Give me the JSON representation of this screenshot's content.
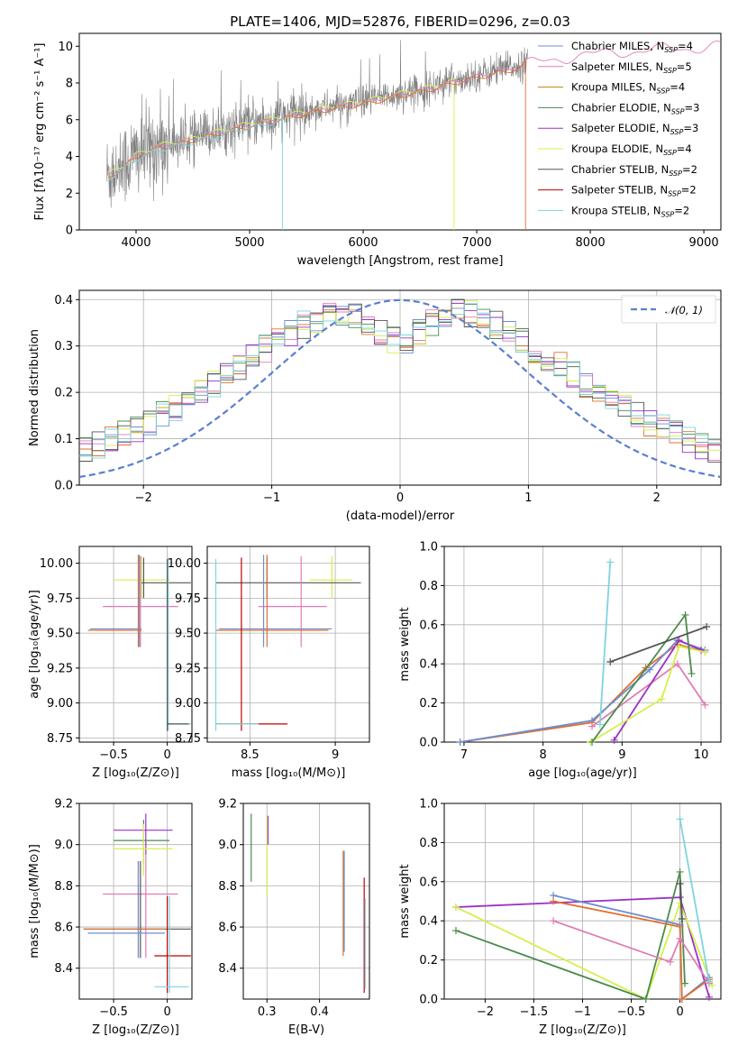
{
  "colors": {
    "miles_chabrier": "#6c8ecf",
    "miles_salpeter": "#e07cb5",
    "miles_kroupa": "#b8860b",
    "elodie_chabrier": "#4c8b4c",
    "elodie_salpeter": "#9b30c8",
    "elodie_kroupa": "#d4f04c",
    "stelib_chabrier": "#555555",
    "stelib_salpeter": "#c00000",
    "stelib_kroupa": "#7fd3e0",
    "orange": "#e07030",
    "grey": "#808080",
    "normal": "#5b7fcf"
  },
  "chart_data": [
    {
      "id": "spectrum",
      "type": "line",
      "title": "PLATE=1406, MJD=52876, FIBERID=0296, z=0.03",
      "xlabel": "wavelength [Angstrom, rest frame]",
      "ylabel": "Flux [fλ10⁻¹⁷ erg cm⁻² s⁻¹ A⁻¹]",
      "xlim": [
        3500,
        9150
      ],
      "ylim": [
        0,
        10.7
      ],
      "xticks": [
        4000,
        5000,
        6000,
        7000,
        8000,
        9000
      ],
      "yticks": [
        0,
        2,
        4,
        6,
        8,
        10
      ],
      "legend_position": "top-right",
      "legend": [
        {
          "label": "Chabrier MILES, N",
          "sub": "SSP",
          "tail": "=4",
          "color": "miles_chabrier"
        },
        {
          "label": "Salpeter MILES, N",
          "sub": "SSP",
          "tail": "=5",
          "color": "miles_salpeter"
        },
        {
          "label": "Kroupa MILES, N",
          "sub": "SSP",
          "tail": "=4",
          "color": "miles_kroupa"
        },
        {
          "label": "Chabrier ELODIE, N",
          "sub": "SSP",
          "tail": "=3",
          "color": "elodie_chabrier"
        },
        {
          "label": "Salpeter ELODIE, N",
          "sub": "SSP",
          "tail": "=3",
          "color": "elodie_salpeter"
        },
        {
          "label": "Kroupa ELODIE, N",
          "sub": "SSP",
          "tail": "=4",
          "color": "elodie_kroupa"
        },
        {
          "label": "Chabrier STELIB, N",
          "sub": "SSP",
          "tail": "=2",
          "color": "stelib_chabrier"
        },
        {
          "label": "Salpeter STELIB, N",
          "sub": "SSP",
          "tail": "=2",
          "color": "stelib_salpeter"
        },
        {
          "label": "Kroupa STELIB, N",
          "sub": "SSP",
          "tail": "=2",
          "color": "stelib_kroupa"
        }
      ],
      "model_envelope": [
        [
          3750,
          3.0
        ],
        [
          3900,
          3.6
        ],
        [
          4000,
          4.1
        ],
        [
          4200,
          4.6
        ],
        [
          4500,
          5.0
        ],
        [
          4800,
          5.5
        ],
        [
          5000,
          5.8
        ],
        [
          5300,
          6.2
        ],
        [
          5600,
          6.6
        ],
        [
          6000,
          7.0
        ],
        [
          6300,
          7.4
        ],
        [
          6600,
          7.8
        ],
        [
          6900,
          8.3
        ],
        [
          7200,
          8.7
        ],
        [
          7400,
          9.0
        ],
        [
          7600,
          9.3
        ],
        [
          7800,
          9.5
        ],
        [
          8000,
          9.6
        ],
        [
          8300,
          9.8
        ],
        [
          8600,
          9.9
        ],
        [
          8900,
          10.0
        ],
        [
          9100,
          10.1
        ]
      ],
      "model_drops": [
        {
          "x": 5290,
          "color": "stelib_kroupa"
        },
        {
          "x": 6800,
          "color": "elodie_kroupa"
        },
        {
          "x": 7430,
          "color": "orange"
        }
      ]
    },
    {
      "id": "residuals",
      "type": "line",
      "xlabel": "(data-model)/error",
      "ylabel": "Normed distribution",
      "xlim": [
        -2.5,
        2.5
      ],
      "ylim": [
        0,
        0.42
      ],
      "xticks": [
        -2,
        -1,
        0,
        1,
        2
      ],
      "yticks": [
        0.0,
        0.1,
        0.2,
        0.3,
        0.4
      ],
      "legend": [
        {
          "label": "𝒩(0, 1)",
          "color": "normal"
        }
      ],
      "histogram_bin_width": 0.1
    },
    {
      "id": "age_vs_z",
      "type": "scatter",
      "xlabel": "Z [log₁₀(Z/Z⊙)]",
      "ylabel": "age  [log₁₀(age/yr)]",
      "xlim": [
        -0.82,
        0.23
      ],
      "ylim": [
        8.72,
        10.12
      ],
      "xticks": [
        -0.5,
        0.0
      ],
      "yticks": [
        8.75,
        9.0,
        9.25,
        9.5,
        9.75,
        10.0
      ],
      "points": [
        {
          "x": -0.24,
          "y": 9.88,
          "xe": [
            -0.5,
            0.02
          ],
          "ye": [
            9.75,
            10.05
          ],
          "color": "elodie_kroupa"
        },
        {
          "x": -0.22,
          "y": 9.86,
          "xe": [
            -0.24,
            0.22
          ],
          "ye": [
            9.75,
            10.04
          ],
          "color": "stelib_chabrier"
        },
        {
          "x": -0.25,
          "y": 9.69,
          "xe": [
            -0.6,
            0.1
          ],
          "ye": [
            9.4,
            10.05
          ],
          "color": "miles_salpeter"
        },
        {
          "x": -0.26,
          "y": 9.53,
          "xe": [
            -0.72,
            -0.24
          ],
          "ye": [
            9.4,
            10.06
          ],
          "color": "miles_chabrier"
        },
        {
          "x": -0.27,
          "y": 9.52,
          "xe": [
            -0.74,
            -0.24
          ],
          "ye": [
            9.4,
            10.06
          ],
          "color": "orange"
        },
        {
          "x": 0.01,
          "y": 8.85,
          "xe": [
            0.0,
            0.22
          ],
          "ye": [
            8.8,
            10.04
          ],
          "color": "stelib_kroupa"
        },
        {
          "x": 0.0,
          "y": 8.85,
          "xe": [
            0.0,
            0.2
          ],
          "ye": [
            8.8,
            10.03
          ],
          "color": "stelib_chabrier"
        }
      ]
    },
    {
      "id": "age_vs_mass",
      "type": "scatter",
      "xlabel": "mass [log₁₀(M/M⊙)]",
      "ylabel": "",
      "xlim": [
        8.25,
        9.2
      ],
      "ylim": [
        8.72,
        10.12
      ],
      "xticks": [
        8.5,
        9.0
      ],
      "yticks": [
        8.75,
        9.0,
        9.25,
        9.5,
        9.75,
        10.0
      ],
      "points": [
        {
          "x": 8.98,
          "y": 9.88,
          "xe": [
            8.85,
            9.1
          ],
          "ye": [
            9.75,
            10.05
          ],
          "color": "elodie_kroupa"
        },
        {
          "x": 8.6,
          "y": 9.86,
          "xe": [
            8.3,
            9.15
          ],
          "ye": [
            9.75,
            10.04
          ],
          "color": "stelib_chabrier"
        },
        {
          "x": 8.8,
          "y": 9.69,
          "xe": [
            8.55,
            8.95
          ],
          "ye": [
            9.4,
            10.05
          ],
          "color": "miles_salpeter"
        },
        {
          "x": 8.58,
          "y": 9.53,
          "xe": [
            8.32,
            8.98
          ],
          "ye": [
            9.4,
            10.06
          ],
          "color": "miles_chabrier"
        },
        {
          "x": 8.6,
          "y": 9.52,
          "xe": [
            8.3,
            8.96
          ],
          "ye": [
            9.4,
            10.06
          ],
          "color": "orange"
        },
        {
          "x": 8.45,
          "y": 8.85,
          "xe": [
            8.3,
            8.72
          ],
          "ye": [
            8.8,
            10.04
          ],
          "color": "stelib_salpeter"
        },
        {
          "x": 8.3,
          "y": 8.85,
          "xe": [
            8.3,
            8.55
          ],
          "ye": [
            8.8,
            10.03
          ],
          "color": "stelib_kroupa"
        }
      ]
    },
    {
      "id": "mw_vs_age",
      "type": "line",
      "xlabel": "age  [log₁₀(age/yr)]",
      "ylabel": "mass weight",
      "xlim": [
        6.75,
        10.25
      ],
      "ylim": [
        0.0,
        1.0
      ],
      "xticks": [
        7,
        8,
        9,
        10
      ],
      "yticks": [
        0.0,
        0.2,
        0.4,
        0.6,
        0.8,
        1.0
      ],
      "series": [
        {
          "color": "orange",
          "x": [
            6.95,
            8.62,
            9.3,
            9.7,
            10.05
          ],
          "y": [
            0.0,
            0.1,
            0.38,
            0.5,
            0.46
          ]
        },
        {
          "color": "miles_chabrier",
          "x": [
            6.95,
            8.62,
            9.35,
            9.7,
            10.05
          ],
          "y": [
            0.0,
            0.11,
            0.37,
            0.52,
            0.47
          ]
        },
        {
          "color": "miles_salpeter",
          "x": [
            8.62,
            9.7,
            10.05
          ],
          "y": [
            0.08,
            0.4,
            0.19
          ]
        },
        {
          "color": "elodie_salpeter",
          "x": [
            8.9,
            9.72,
            10.0
          ],
          "y": [
            0.01,
            0.52,
            0.47
          ]
        },
        {
          "color": "elodie_kroupa",
          "x": [
            8.6,
            9.5,
            9.72,
            10.05
          ],
          "y": [
            0.0,
            0.22,
            0.49,
            0.46
          ]
        },
        {
          "color": "elodie_chabrier",
          "x": [
            8.62,
            9.8,
            9.88
          ],
          "y": [
            0.0,
            0.65,
            0.35
          ]
        },
        {
          "color": "stelib_chabrier",
          "x": [
            8.85,
            10.07
          ],
          "y": [
            0.41,
            0.59
          ]
        },
        {
          "color": "stelib_kroupa",
          "x": [
            8.72,
            8.85
          ],
          "y": [
            0.09,
            0.92
          ]
        }
      ]
    },
    {
      "id": "mass_vs_z",
      "type": "scatter",
      "xlabel": "Z [log₁₀(Z/Z⊙)]",
      "ylabel": "mass [log₁₀(M/M⊙)]",
      "xlim": [
        -0.82,
        0.23
      ],
      "ylim": [
        8.25,
        9.2
      ],
      "xticks": [
        -0.5,
        0.0
      ],
      "yticks": [
        8.4,
        8.6,
        8.8,
        9.0,
        9.2
      ],
      "points": [
        {
          "x": -0.2,
          "y": 9.07,
          "xe": [
            -0.5,
            0.05
          ],
          "ye": [
            8.95,
            9.15
          ],
          "color": "elodie_salpeter"
        },
        {
          "x": -0.22,
          "y": 9.02,
          "xe": [
            -0.5,
            0.02
          ],
          "ye": [
            8.9,
            9.12
          ],
          "color": "elodie_chabrier"
        },
        {
          "x": -0.22,
          "y": 8.98,
          "xe": [
            -0.5,
            0.05
          ],
          "ye": [
            8.85,
            9.1
          ],
          "color": "elodie_kroupa"
        },
        {
          "x": -0.2,
          "y": 8.76,
          "xe": [
            -0.6,
            0.1
          ],
          "ye": [
            8.45,
            8.95
          ],
          "color": "miles_salpeter"
        },
        {
          "x": -0.25,
          "y": 8.59,
          "xe": [
            -0.78,
            0.22
          ],
          "ye": [
            8.45,
            8.92
          ],
          "color": "stelib_chabrier"
        },
        {
          "x": -0.27,
          "y": 8.59,
          "xe": [
            -0.78,
            -0.02
          ],
          "ye": [
            8.45,
            8.92
          ],
          "color": "orange"
        },
        {
          "x": -0.27,
          "y": 8.57,
          "xe": [
            -0.74,
            -0.02
          ],
          "ye": [
            8.45,
            8.92
          ],
          "color": "miles_chabrier"
        },
        {
          "x": 0.0,
          "y": 8.46,
          "xe": [
            -0.12,
            0.22
          ],
          "ye": [
            8.28,
            8.75
          ],
          "color": "stelib_salpeter"
        },
        {
          "x": 0.02,
          "y": 8.31,
          "xe": [
            -0.12,
            0.2
          ],
          "ye": [
            8.28,
            8.75
          ],
          "color": "stelib_kroupa"
        }
      ]
    },
    {
      "id": "mass_vs_ebv",
      "type": "scatter",
      "xlabel": "E(B-V)",
      "ylabel": "",
      "xlim": [
        0.255,
        0.495
      ],
      "ylim": [
        8.25,
        9.2
      ],
      "xticks": [
        0.3,
        0.4
      ],
      "yticks": [
        8.4,
        8.6,
        8.8,
        9.0,
        9.2
      ],
      "points": [
        {
          "x": 0.27,
          "y": 9.0,
          "xe": [
            0.27,
            0.27
          ],
          "ye": [
            8.82,
            9.15
          ],
          "color": "elodie_chabrier"
        },
        {
          "x": 0.3,
          "y": 8.98,
          "xe": [
            0.3,
            0.3
          ],
          "ye": [
            8.75,
            9.14
          ],
          "color": "elodie_kroupa"
        },
        {
          "x": 0.302,
          "y": 9.07,
          "xe": [
            0.302,
            0.302
          ],
          "ye": [
            9.0,
            9.14
          ],
          "color": "elodie_salpeter"
        },
        {
          "x": 0.445,
          "y": 8.7,
          "xe": [
            0.445,
            0.445
          ],
          "ye": [
            8.46,
            8.97
          ],
          "color": "orange"
        },
        {
          "x": 0.447,
          "y": 8.72,
          "xe": [
            0.447,
            0.447
          ],
          "ye": [
            8.48,
            8.97
          ],
          "color": "miles_chabrier"
        },
        {
          "x": 0.485,
          "y": 8.55,
          "xe": [
            0.485,
            0.485
          ],
          "ye": [
            8.28,
            8.84
          ],
          "color": "stelib_salpeter"
        },
        {
          "x": 0.487,
          "y": 8.52,
          "xe": [
            0.487,
            0.487
          ],
          "ye": [
            8.3,
            8.74
          ],
          "color": "stelib_kroupa"
        }
      ]
    },
    {
      "id": "mw_vs_z",
      "type": "line",
      "xlabel": "Z [log₁₀(Z/Z⊙)]",
      "ylabel": "mass weight",
      "xlim": [
        -2.42,
        0.42
      ],
      "ylim": [
        0.0,
        1.0
      ],
      "xticks": [
        -2.0,
        -1.5,
        -1.0,
        -0.5,
        0.0
      ],
      "yticks": [
        0.0,
        0.2,
        0.4,
        0.6,
        0.8,
        1.0
      ],
      "series": [
        {
          "color": "elodie_salpeter",
          "x": [
            -2.3,
            0.0,
            0.3
          ],
          "y": [
            0.47,
            0.52,
            0.01
          ]
        },
        {
          "color": "elodie_kroupa",
          "x": [
            -2.3,
            -0.35,
            0.0,
            0.33
          ],
          "y": [
            0.47,
            0.0,
            0.49,
            0.07
          ]
        },
        {
          "color": "elodie_chabrier",
          "x": [
            -2.3,
            -0.35,
            0.0,
            0.05
          ],
          "y": [
            0.35,
            0.0,
            0.65,
            0.08
          ]
        },
        {
          "color": "miles_chabrier",
          "x": [
            -1.3,
            0.0,
            0.02,
            0.3
          ],
          "y": [
            0.53,
            0.38,
            0.0,
            0.11
          ]
        },
        {
          "color": "orange",
          "x": [
            -1.3,
            0.0,
            0.02,
            0.3
          ],
          "y": [
            0.5,
            0.37,
            0.0,
            0.1
          ]
        },
        {
          "color": "miles_salpeter",
          "x": [
            -1.3,
            -0.1,
            0.0,
            0.3
          ],
          "y": [
            0.4,
            0.19,
            0.31,
            0.08
          ]
        },
        {
          "color": "stelib_chabrier",
          "x": [
            0.0,
            0.02
          ],
          "y": [
            0.59,
            0.41
          ]
        },
        {
          "color": "stelib_kroupa",
          "x": [
            0.0,
            0.3
          ],
          "y": [
            0.92,
            0.09
          ]
        }
      ]
    }
  ]
}
